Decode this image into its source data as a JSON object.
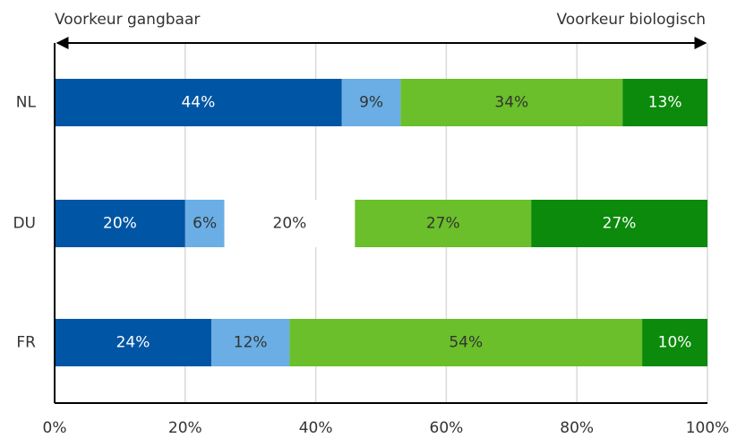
{
  "chart_data": {
    "type": "stacked_barh",
    "annotations": [
      "Voorkeur gangbaar",
      "Voorkeur biologisch"
    ],
    "categories": [
      "NL",
      "DU",
      "FR"
    ],
    "series": [
      {
        "color": "#0055a5",
        "values": [
          44,
          20,
          24
        ],
        "value_labels": [
          "44%",
          "20%",
          "24%"
        ]
      },
      {
        "color": "#6aaee5",
        "values": [
          9,
          6,
          12
        ],
        "value_labels": [
          "9%",
          "6%",
          "12%"
        ]
      },
      {
        "color": "#ffffff",
        "values": [
          null,
          20,
          null
        ],
        "value_labels": [
          null,
          "20%",
          null
        ]
      },
      {
        "color": "#6abf2a",
        "values": [
          34,
          27,
          54
        ],
        "value_labels": [
          "34%",
          "27%",
          "54%"
        ]
      },
      {
        "color": "#0b8a0b",
        "values": [
          13,
          27,
          10
        ],
        "value_labels": [
          "13%",
          "27%",
          "10%"
        ]
      }
    ],
    "xlim": [
      0,
      100
    ],
    "xticks": [
      {
        "value": 0,
        "label": "0%"
      },
      {
        "value": 20,
        "label": "20%"
      },
      {
        "value": 40,
        "label": "40%"
      },
      {
        "value": 60,
        "label": "60%"
      },
      {
        "value": 80,
        "label": "80%"
      },
      {
        "value": 100,
        "label": "100%"
      }
    ],
    "grid": true
  }
}
